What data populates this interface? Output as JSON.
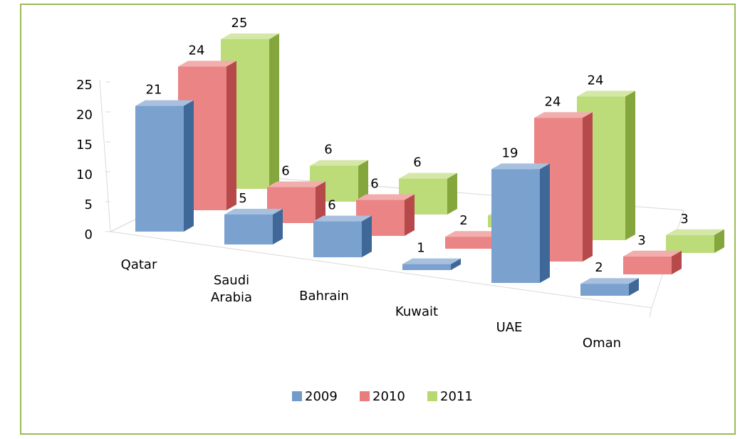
{
  "chart_data": {
    "type": "bar3d",
    "categories": [
      "Qatar",
      "Saudi Arabia",
      "Bahrain",
      "Kuwait",
      "UAE",
      "Oman"
    ],
    "series": [
      {
        "name": "2009",
        "color": "#4f81bd",
        "values": [
          21,
          5,
          6,
          1,
          19,
          2
        ]
      },
      {
        "name": "2010",
        "color": "#e45b5b",
        "values": [
          24,
          6,
          6,
          2,
          24,
          3
        ]
      },
      {
        "name": "2011",
        "color": "#a6cf4c",
        "values": [
          25,
          6,
          6,
          2,
          24,
          3
        ]
      }
    ],
    "ylim": [
      0,
      25
    ],
    "yticks": [
      0,
      5,
      10,
      15,
      20,
      25
    ],
    "legend": "bottom"
  }
}
